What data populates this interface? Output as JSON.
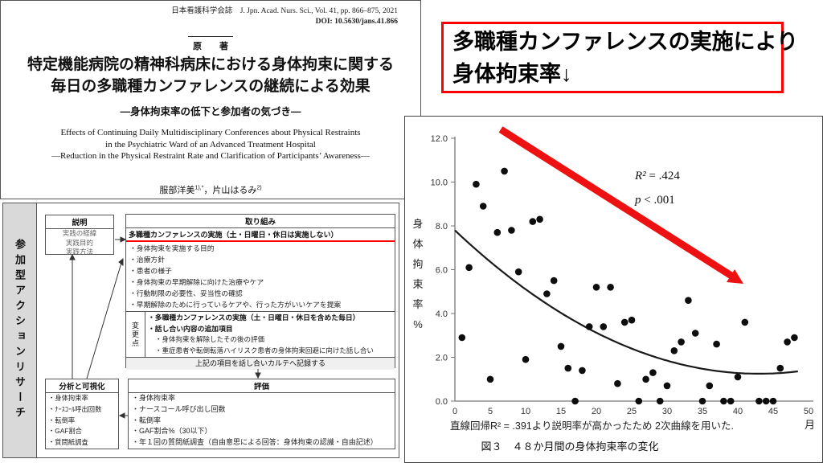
{
  "paper": {
    "journal_line": "日本看護科学会誌　J. Jpn. Acad. Nurs. Sci., Vol. 41, pp. 866–875, 2021",
    "doi_line": "DOI: 10.5630/jans.41.866",
    "article_type": "原　　著",
    "title_line1": "特定機能病院の精神科病床における身体拘束に関する",
    "title_line2": "毎日の多職種カンファレンスの継続による効果",
    "subtitle": "―身体拘束率の低下と参加者の気づき―",
    "title_en_line1": "Effects of Continuing Daily Multidisciplinary Conferences about Physical Restraints",
    "title_en_line2": "in the Psychiatric Ward of an Advanced Treatment Hospital",
    "title_en_line3": "—Reduction in the Physical Restraint Rate and Clarification of Participants’ Awareness—",
    "author1": "服部洋美",
    "author1_sup": "1),*",
    "author_sep": "，",
    "author2": "片山はるみ",
    "author2_sup": "2)"
  },
  "callout": {
    "line1": "多職種カンファレンスの実施により",
    "line2": "身体拘束率↓",
    "border_color": "#ff0000"
  },
  "flowchart": {
    "side_label": "参加型アクションリサーチ",
    "setsumei": {
      "title": "説明",
      "items": [
        "実践の経緯",
        "実践目的",
        "実践方法"
      ]
    },
    "torikumi": {
      "title": "取り組み",
      "highlight": "多職種カンファレンスの実施（土・日曜日・休日は実施しない）",
      "items": [
        "・身体拘束を実施する目的",
        "・治療方針",
        "・患者の様子",
        "・身体拘束の早期解除に向けた治療やケア",
        "・行動制限の必要性、妥当性の確認",
        "・早期解除のために行っているケアや、行った方がいいケアを提案"
      ],
      "henko_label": "変更点",
      "henko_bold1": "・多職種カンファレンスの実施（土・日曜日・休日を含めた毎日）",
      "henko_bold2": "・話し合い内容の追加項目",
      "henko_sub1": "・身体拘束を解除したその後の評価",
      "henko_sub2": "・重症患者や転倒転落ハイリスク患者の身体拘束回避に向けた話し合い",
      "record_note": "上記の項目を話し合いカルテへ記録する"
    },
    "bunseki": {
      "title": "分析と可視化",
      "items": [
        "・身体拘束率",
        "・ﾅｰｽｺｰﾙ呼出回数",
        "・転倒率",
        "・GAF割合",
        "・質問紙調査"
      ]
    },
    "hyoka": {
      "title": "評価",
      "items": [
        "・身体拘束率",
        "・ナースコール呼び出し回数",
        "・転倒率",
        "・GAF割合%（30以下）",
        "・年１回の質問紙調査（自由意思による回答：身体拘束の認識・自由記述）"
      ]
    }
  },
  "chart_data": {
    "type": "scatter",
    "x_label": "月",
    "y_label": "身体拘束率%",
    "x_ticks": [
      0,
      5,
      10,
      15,
      20,
      25,
      30,
      35,
      40,
      45,
      50
    ],
    "y_ticks": [
      "12.0",
      "10.0",
      "8.0",
      "6.0",
      "4.0",
      "2.0",
      "0.0"
    ],
    "xlim": [
      0,
      50
    ],
    "ylim": [
      0,
      12
    ],
    "points": [
      [
        1,
        2.9
      ],
      [
        2,
        6.1
      ],
      [
        3,
        9.9
      ],
      [
        4,
        8.9
      ],
      [
        5,
        1.0
      ],
      [
        6,
        7.7
      ],
      [
        7,
        10.5
      ],
      [
        8,
        7.8
      ],
      [
        9,
        5.9
      ],
      [
        10,
        1.9
      ],
      [
        11,
        8.2
      ],
      [
        12,
        8.3
      ],
      [
        13,
        4.9
      ],
      [
        14,
        5.5
      ],
      [
        15,
        2.5
      ],
      [
        16,
        1.5
      ],
      [
        17,
        0
      ],
      [
        18,
        1.4
      ],
      [
        19,
        3.4
      ],
      [
        20,
        5.2
      ],
      [
        21,
        3.4
      ],
      [
        22,
        5.2
      ],
      [
        23,
        0.8
      ],
      [
        24,
        3.6
      ],
      [
        25,
        3.7
      ],
      [
        26,
        0
      ],
      [
        27,
        1.0
      ],
      [
        28,
        1.3
      ],
      [
        29,
        0
      ],
      [
        30,
        0.7
      ],
      [
        31,
        2.3
      ],
      [
        32,
        2.7
      ],
      [
        33,
        4.6
      ],
      [
        34,
        3.1
      ],
      [
        35,
        0
      ],
      [
        36,
        0.7
      ],
      [
        37,
        2.6
      ],
      [
        38,
        0
      ],
      [
        39,
        0
      ],
      [
        40,
        1.1
      ],
      [
        41,
        3.6
      ],
      [
        43,
        0
      ],
      [
        44,
        0
      ],
      [
        45,
        0
      ],
      [
        46,
        1.5
      ],
      [
        47,
        2.7
      ],
      [
        48,
        2.9
      ]
    ],
    "trend": {
      "type": "quadratic",
      "a": 0.00354,
      "vertex_x": 43,
      "vertex_y": 1.25,
      "x_start": 0,
      "x_end": 48.5
    },
    "r2_var": "R²",
    "r2_rest": " = .424",
    "p_var": "p",
    "p_rest": " < .001",
    "arrow_color": "#ee1111",
    "point_color": "#0d0d0d",
    "note": "直線回帰R² = .391より説明率が高かったため 2次曲線を用いた.",
    "caption": "図３　４８か月間の身体拘束率の変化"
  }
}
